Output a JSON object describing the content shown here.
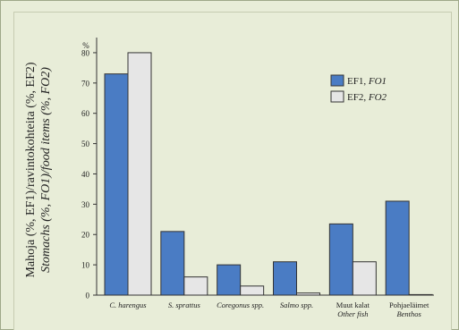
{
  "chart_data": {
    "type": "bar",
    "ylabel_line1": "Mahoja (%, EF1)/ravintokohteita (%, EF2)",
    "ylabel_line2": "Stomachs (%, FO1)/food items (%, FO2)",
    "y_unit": "%",
    "ylim": [
      0,
      85
    ],
    "yticks": [
      0,
      10,
      20,
      30,
      40,
      50,
      60,
      70,
      80
    ],
    "grid": false,
    "legend_position": "top-right",
    "categories": [
      {
        "line1": "C. harengus",
        "line2": "",
        "italic1": true,
        "italic2": false
      },
      {
        "line1": "S. sprattus",
        "line2": "",
        "italic1": true,
        "italic2": false
      },
      {
        "line1": "Coregonus spp.",
        "line2": "",
        "italic1": true,
        "italic2": false
      },
      {
        "line1": "Salmo spp.",
        "line2": "",
        "italic1": true,
        "italic2": false
      },
      {
        "line1": "Muut kalat",
        "line2": "Other fish",
        "italic1": false,
        "italic2": true
      },
      {
        "line1": "Pohjaeläimet",
        "line2": "Benthos",
        "italic1": false,
        "italic2": true
      }
    ],
    "series": [
      {
        "name": "EF1, ",
        "name_italic": "FO1",
        "color": "#4a7cc4",
        "values": [
          73,
          21,
          10,
          11,
          23.5,
          31
        ]
      },
      {
        "name": "EF2, ",
        "name_italic": "FO2",
        "color": "#e6e6e6",
        "values": [
          80,
          6,
          3,
          0.7,
          11,
          0
        ]
      }
    ]
  }
}
